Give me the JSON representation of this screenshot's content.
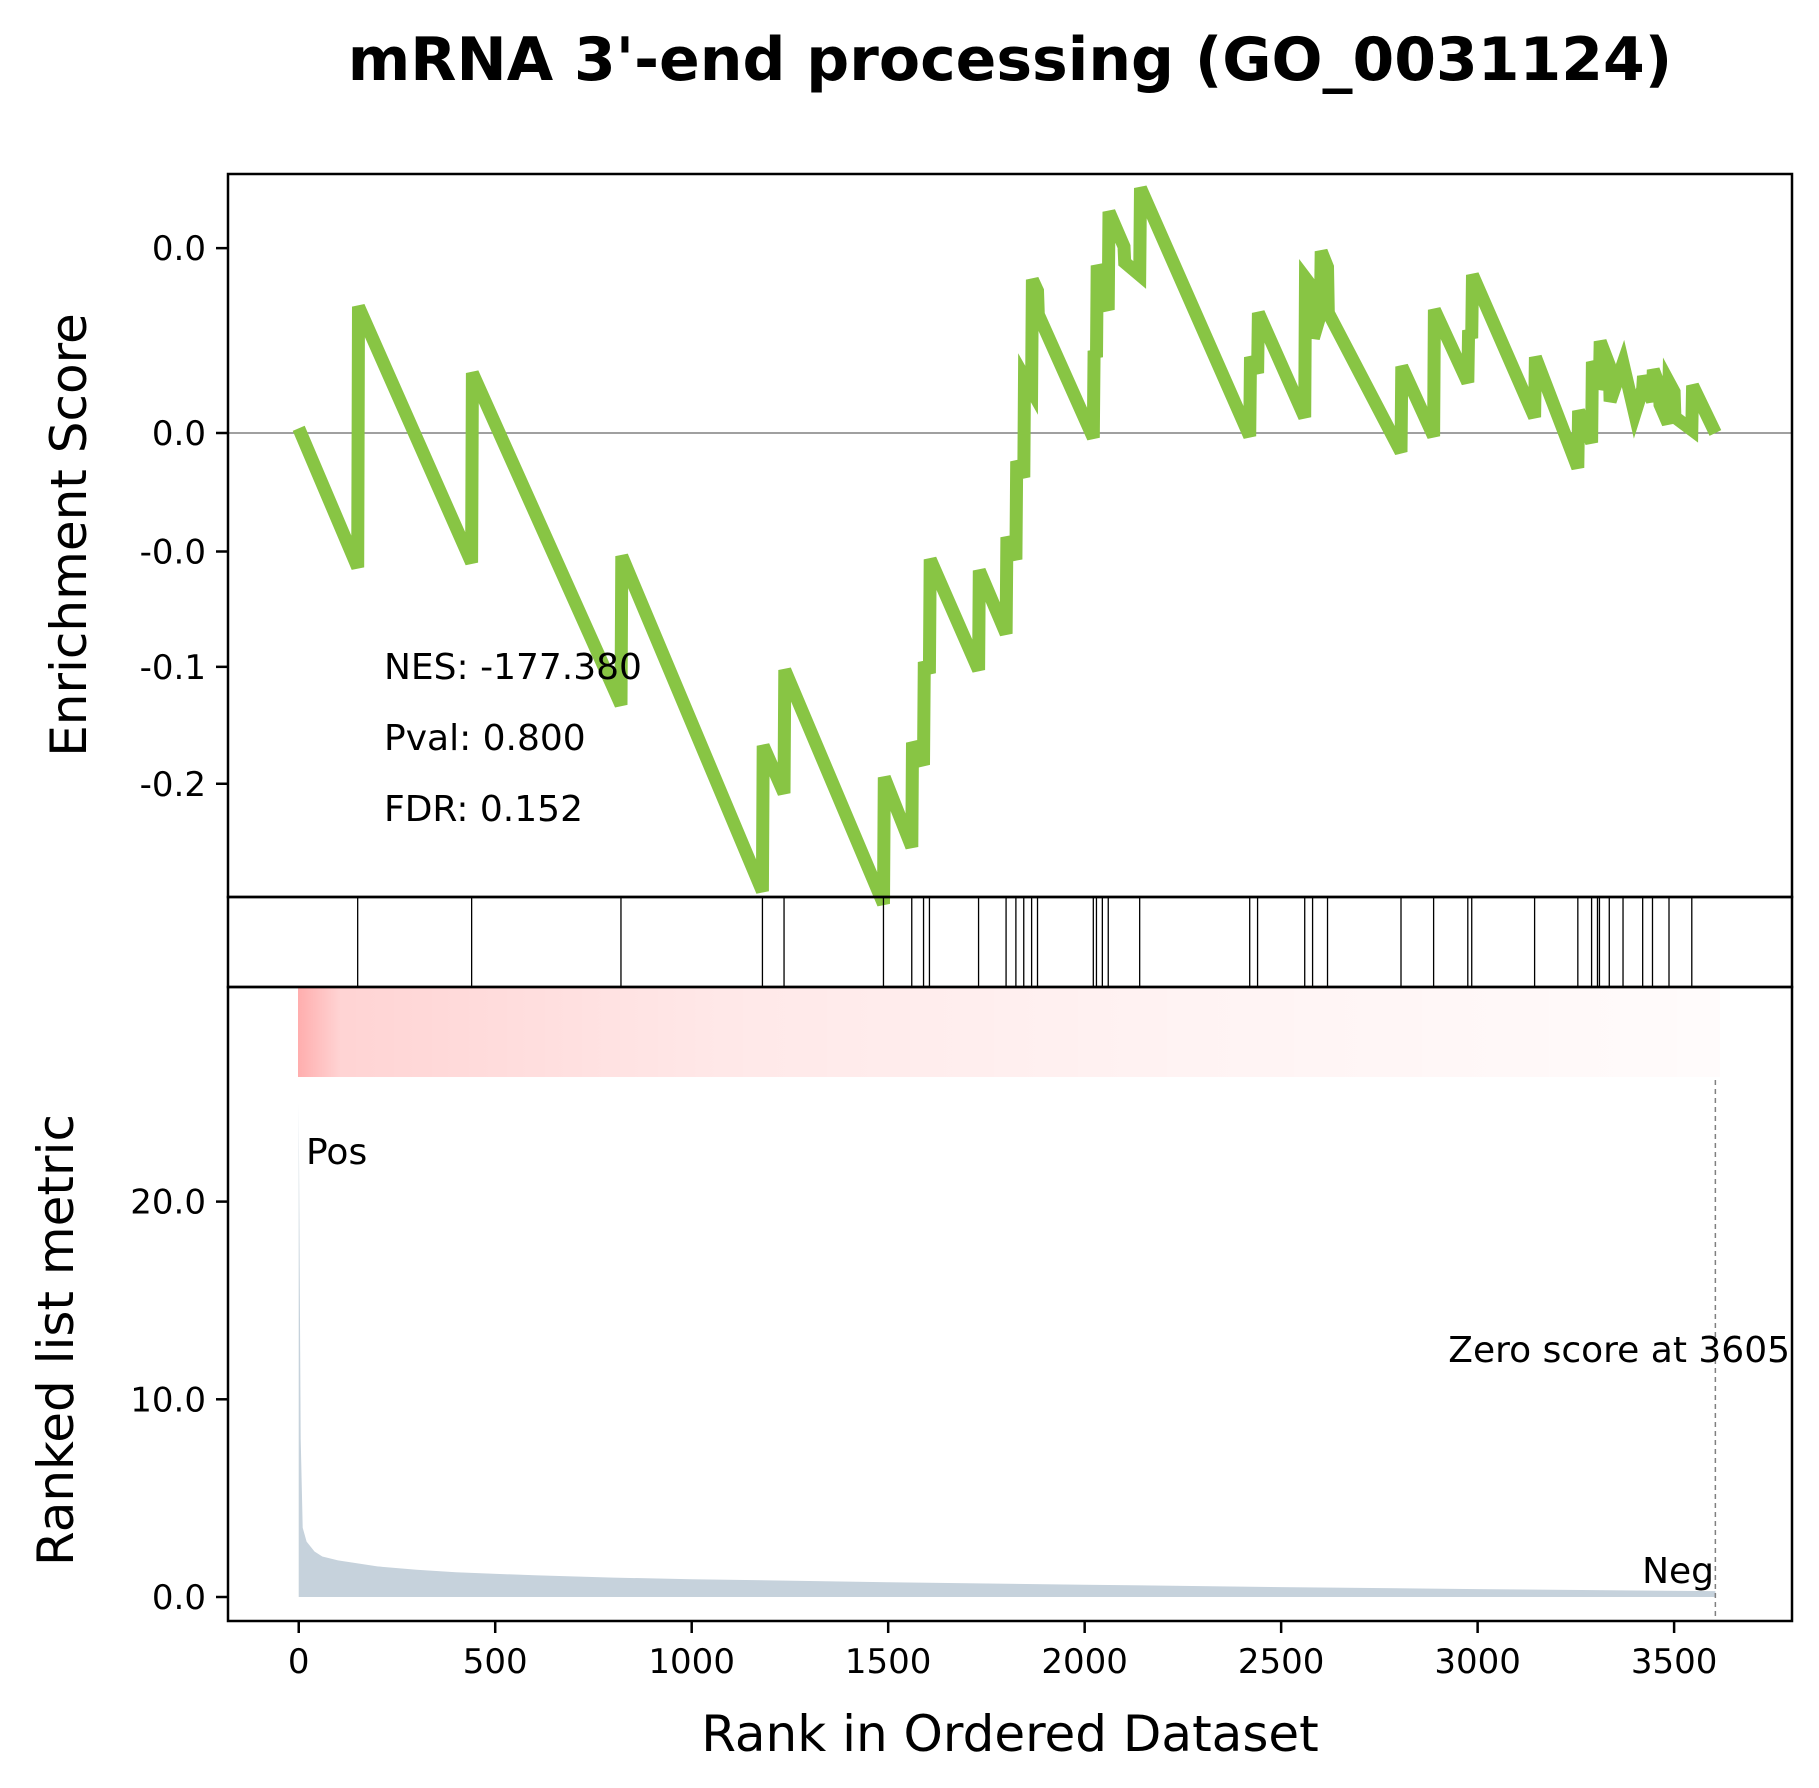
{
  "chart_data": {
    "type": "line",
    "title": "mRNA 3'-end processing (GO_0031124)",
    "xlabel": "Rank in Ordered Dataset",
    "xlim": [
      -180,
      3800
    ],
    "x_ticks": [
      0,
      500,
      1000,
      1500,
      2000,
      2500,
      3000,
      3500
    ],
    "x_tick_labels": [
      "0",
      "500",
      "1000",
      "1500",
      "2000",
      "2500",
      "3000",
      "3500"
    ],
    "enrichment_panel": {
      "ylabel": "Enrichment Score",
      "y_tick_labels": [
        "0.0",
        "0.0",
        "-0.0",
        "-0.1",
        "-0.2"
      ],
      "series": [
        {
          "color": "#88c544",
          "points": [
            [
              0,
              0.003
            ],
            [
              150,
              -0.085
            ],
            [
              152,
              0.08
            ],
            [
              440,
              -0.082
            ],
            [
              442,
              0.038
            ],
            [
              820,
              -0.172
            ],
            [
              822,
              -0.078
            ],
            [
              1180,
              -0.29
            ],
            [
              1182,
              -0.198
            ],
            [
              1235,
              -0.228
            ],
            [
              1237,
              -0.15
            ],
            [
              1488,
              -0.298
            ],
            [
              1490,
              -0.218
            ],
            [
              1560,
              -0.262
            ],
            [
              1562,
              -0.196
            ],
            [
              1590,
              -0.21
            ],
            [
              1592,
              -0.145
            ],
            [
              1605,
              -0.152
            ],
            [
              1607,
              -0.08
            ],
            [
              1730,
              -0.15
            ],
            [
              1732,
              -0.087
            ],
            [
              1800,
              -0.127
            ],
            [
              1802,
              -0.066
            ],
            [
              1825,
              -0.08
            ],
            [
              1827,
              -0.018
            ],
            [
              1845,
              -0.028
            ],
            [
              1847,
              0.035
            ],
            [
              1865,
              0.027
            ],
            [
              1867,
              0.097
            ],
            [
              1880,
              0.09
            ],
            [
              1882,
              0.075
            ],
            [
              2022,
              -0.003
            ],
            [
              2024,
              0.052
            ],
            [
              2030,
              0.048
            ],
            [
              2032,
              0.106
            ],
            [
              2045,
              0.098
            ],
            [
              2047,
              0.085
            ],
            [
              2060,
              0.078
            ],
            [
              2062,
              0.14
            ],
            [
              2100,
              0.118
            ],
            [
              2102,
              0.108
            ],
            [
              2140,
              0.1
            ],
            [
              2142,
              0.155
            ],
            [
              2420,
              -0.002
            ],
            [
              2422,
              0.048
            ],
            [
              2440,
              0.038
            ],
            [
              2442,
              0.076
            ],
            [
              2560,
              0.01
            ],
            [
              2562,
              0.098
            ],
            [
              2580,
              0.092
            ],
            [
              2582,
              0.06
            ],
            [
              2600,
              0.075
            ],
            [
              2602,
              0.115
            ],
            [
              2618,
              0.105
            ],
            [
              2620,
              0.076
            ],
            [
              2805,
              -0.012
            ],
            [
              2807,
              0.042
            ],
            [
              2888,
              -0.002
            ],
            [
              2890,
              0.078
            ],
            [
              2975,
              0.032
            ],
            [
              2977,
              0.065
            ],
            [
              2985,
              0.06
            ],
            [
              2987,
              0.1
            ],
            [
              3145,
              0.01
            ],
            [
              3147,
              0.048
            ],
            [
              3255,
              -0.022
            ],
            [
              3257,
              0.014
            ],
            [
              3290,
              -0.006
            ],
            [
              3292,
              0.045
            ],
            [
              3305,
              0.038
            ],
            [
              3307,
              0.028
            ],
            [
              3310,
              0.03
            ],
            [
              3312,
              0.058
            ],
            [
              3335,
              0.043
            ],
            [
              3337,
              0.02
            ],
            [
              3370,
              0.044
            ],
            [
              3400,
              0.012
            ],
            [
              3420,
              0.028
            ],
            [
              3422,
              0.036
            ],
            [
              3445,
              0.02
            ],
            [
              3447,
              0.04
            ],
            [
              3462,
              0.03
            ],
            [
              3464,
              0.018
            ],
            [
              3485,
              0.006
            ],
            [
              3487,
              0.032
            ],
            [
              3500,
              0.026
            ],
            [
              3502,
              0.01
            ],
            [
              3545,
              0.002
            ],
            [
              3547,
              0.03
            ],
            [
              3605,
              0.0
            ]
          ]
        }
      ],
      "annotations": [
        "NES: -177.380",
        "Pval: 0.800",
        "FDR: 0.152"
      ]
    },
    "hits": [
      150,
      440,
      820,
      1180,
      1235,
      1488,
      1560,
      1590,
      1605,
      1730,
      1800,
      1825,
      1845,
      1865,
      1880,
      2022,
      2030,
      2045,
      2060,
      2140,
      2420,
      2440,
      2560,
      2580,
      2618,
      2805,
      2888,
      2975,
      2985,
      3145,
      3255,
      3290,
      3305,
      3310,
      3335,
      3370,
      3420,
      3445,
      3487,
      3545
    ],
    "metric_panel": {
      "ylabel": "Ranked list metric",
      "y_ticks": [
        0,
        10,
        20
      ],
      "y_tick_labels": [
        "0.0",
        "10.0",
        "20.0"
      ],
      "ylim": [
        -1.2,
        25.8
      ],
      "zero_score_rank": 3605,
      "area_color": "#c6d2dc",
      "points": [
        [
          0,
          25.0
        ],
        [
          5,
          8.0
        ],
        [
          10,
          3.5
        ],
        [
          20,
          2.8
        ],
        [
          40,
          2.3
        ],
        [
          60,
          2.05
        ],
        [
          100,
          1.85
        ],
        [
          200,
          1.55
        ],
        [
          300,
          1.38
        ],
        [
          400,
          1.25
        ],
        [
          600,
          1.1
        ],
        [
          800,
          0.98
        ],
        [
          1000,
          0.9
        ],
        [
          1500,
          0.75
        ],
        [
          2000,
          0.62
        ],
        [
          2500,
          0.5
        ],
        [
          3000,
          0.4
        ],
        [
          3300,
          0.35
        ],
        [
          3605,
          0.3
        ]
      ],
      "pos_label": "Pos",
      "neg_label": "Neg",
      "zero_label": "Zero score at 3605",
      "pos_color": "#ff0000",
      "neg_color": "#0000ff"
    },
    "gradient_color": "#ff0000"
  }
}
